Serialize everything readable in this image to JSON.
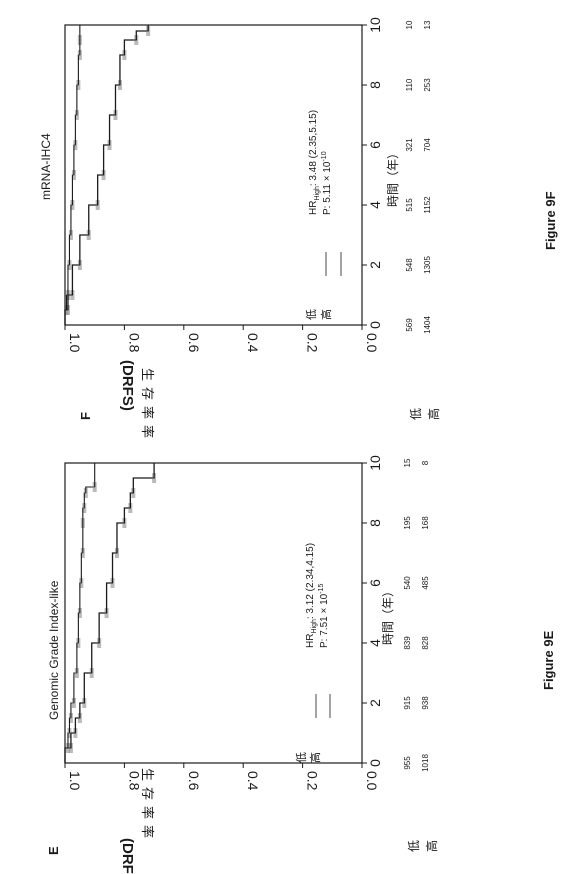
{
  "chart_data": [
    {
      "type": "line",
      "panel_letter": "E",
      "figure_caption": "Figure 9E",
      "title": "Genomic Grade Index-like",
      "ylabel_lines": [
        "(DRFS)",
        "生",
        "存",
        "率",
        "率"
      ],
      "ylabel_main": "(DRFS)",
      "ylabel_cjk": "生存率率",
      "xlabel": "時間（年）",
      "xlim": [
        0,
        10
      ],
      "ylim": [
        0,
        1
      ],
      "x_ticks": [
        "0",
        "2",
        "4",
        "6",
        "8",
        "10"
      ],
      "y_ticks": [
        "0.0",
        "0.2",
        "0.4",
        "0.6",
        "0.8",
        "1.0"
      ],
      "legend": {
        "low_label": "低",
        "high_label": "高",
        "placement": "bottom-left"
      },
      "annotation_hr": "HR_High: 3.12 (2.34,4.15)",
      "annotation_p": "P: 7.51 × 10^-15",
      "risk_table": {
        "row_low_label": "低",
        "row_high_label": "高",
        "low": [
          "955",
          "915",
          "839",
          "540",
          "195",
          "15"
        ],
        "high": [
          "1018",
          "938",
          "828",
          "485",
          "168",
          "8"
        ]
      },
      "series": [
        {
          "name": "低",
          "x": [
            0,
            0.5,
            1,
            1.5,
            2,
            3,
            4,
            5,
            6,
            7,
            8,
            8.5,
            9,
            9.2,
            10
          ],
          "y": [
            1.0,
            0.99,
            0.985,
            0.98,
            0.97,
            0.96,
            0.955,
            0.95,
            0.945,
            0.94,
            0.94,
            0.935,
            0.93,
            0.9,
            0.9
          ]
        },
        {
          "name": "高",
          "x": [
            0,
            0.5,
            1,
            1.5,
            2,
            3,
            4,
            5,
            6,
            7,
            8,
            8.5,
            9,
            9.5,
            10
          ],
          "y": [
            1.0,
            0.98,
            0.965,
            0.95,
            0.935,
            0.91,
            0.885,
            0.86,
            0.84,
            0.825,
            0.8,
            0.78,
            0.77,
            0.7,
            0.7
          ]
        }
      ]
    },
    {
      "type": "line",
      "panel_letter": "F",
      "figure_caption": "Figure 9F",
      "title": "mRNA-IHC4",
      "ylabel_lines": [
        "(DRFS)",
        "生",
        "存",
        "率",
        "率"
      ],
      "ylabel_main": "(DRFS)",
      "ylabel_cjk": "生存率率",
      "xlabel": "時間（年）",
      "xlim": [
        0,
        10
      ],
      "ylim": [
        0,
        1
      ],
      "x_ticks": [
        "0",
        "2",
        "4",
        "6",
        "8",
        "10"
      ],
      "y_ticks": [
        "0.0",
        "0.2",
        "0.4",
        "0.6",
        "0.8",
        "1.0"
      ],
      "legend": {
        "low_label": "低",
        "high_label": "高",
        "placement": "bottom-left"
      },
      "annotation_hr": "HR_High: 3.48 (2.35,5.15)",
      "annotation_p": "P: 5.11 × 10^-10",
      "risk_table": {
        "row_low_label": "低",
        "row_high_label": "高",
        "low": [
          "569",
          "548",
          "515",
          "321",
          "110",
          "10"
        ],
        "high": [
          "1404",
          "1305",
          "1152",
          "704",
          "253",
          "13"
        ]
      },
      "series": [
        {
          "name": "低",
          "x": [
            0,
            0.5,
            1,
            2,
            3,
            4,
            5,
            6,
            7,
            8,
            9,
            9.5,
            10
          ],
          "y": [
            1.0,
            0.995,
            0.99,
            0.985,
            0.98,
            0.975,
            0.97,
            0.965,
            0.96,
            0.955,
            0.95,
            0.95,
            0.95
          ]
        },
        {
          "name": "高",
          "x": [
            0,
            0.5,
            1,
            2,
            3,
            4,
            5,
            6,
            7,
            8,
            9,
            9.5,
            9.8,
            10
          ],
          "y": [
            1.0,
            0.99,
            0.975,
            0.95,
            0.92,
            0.89,
            0.87,
            0.85,
            0.83,
            0.815,
            0.8,
            0.76,
            0.72,
            0.72
          ]
        }
      ]
    }
  ]
}
